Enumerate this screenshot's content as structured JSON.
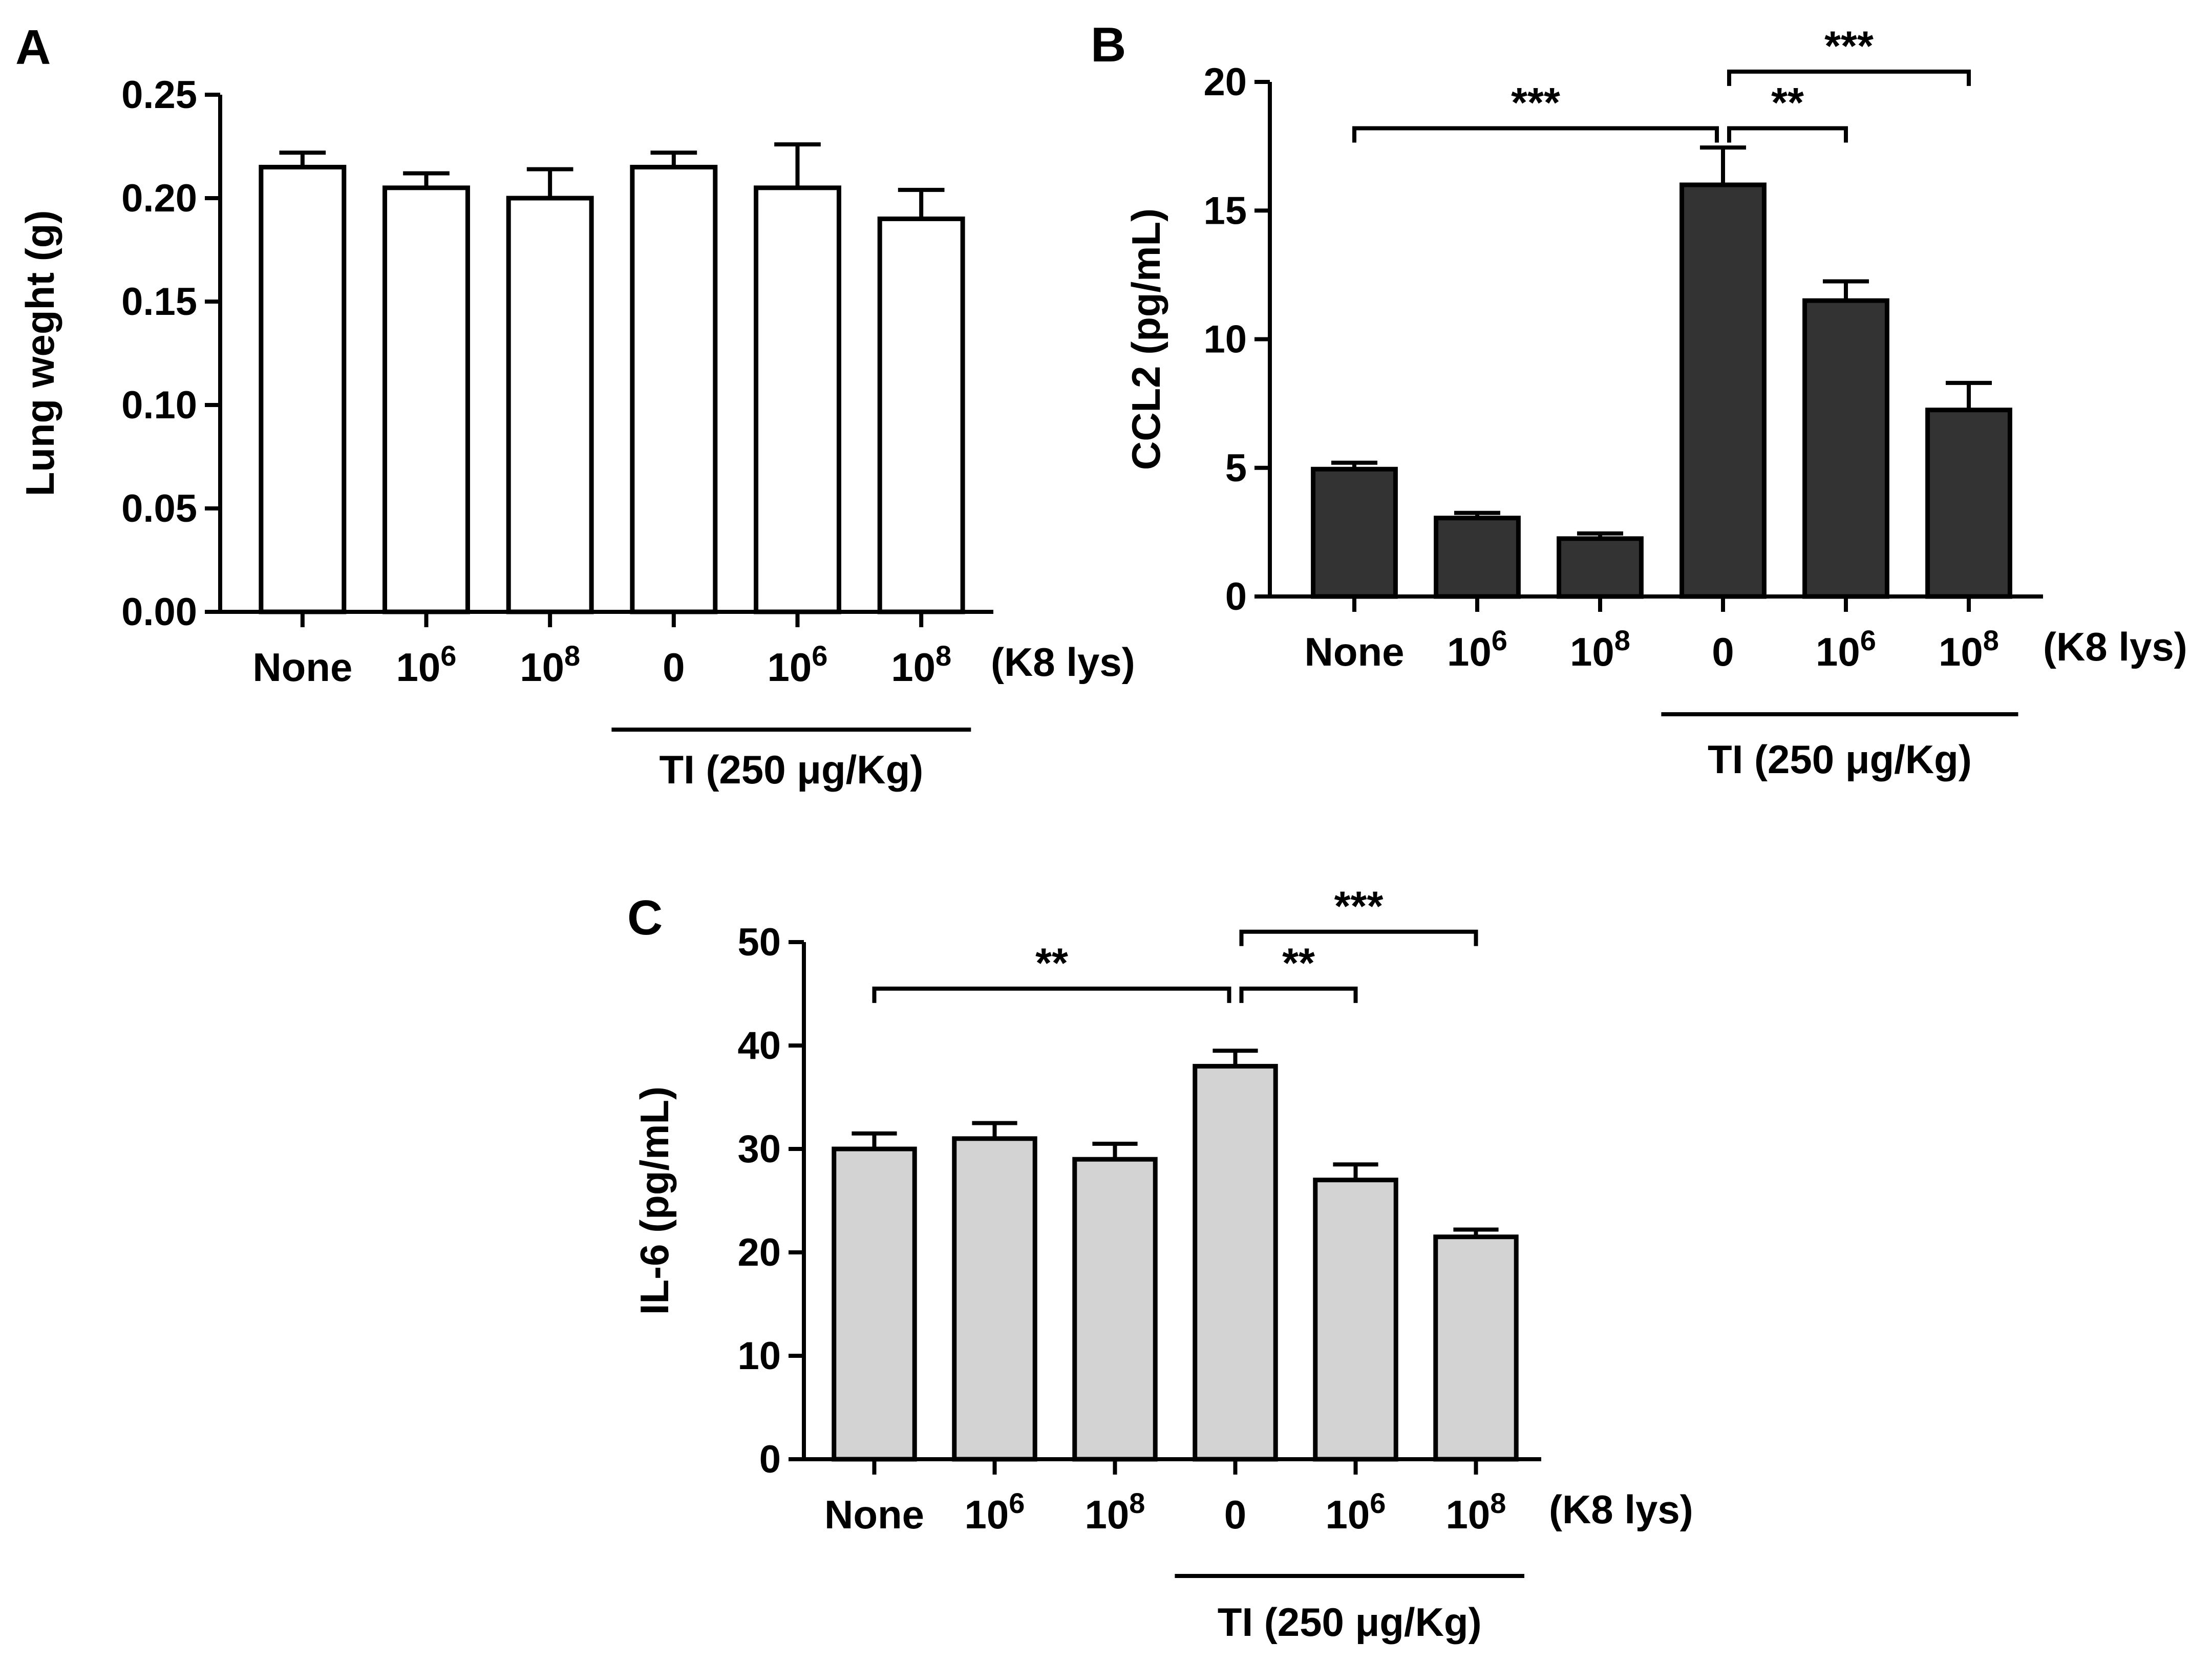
{
  "figure": {
    "background": "#ffffff",
    "axis_color": "#000000"
  },
  "chart_data": [
    {
      "panel": "A",
      "type": "bar",
      "ylabel": "Lung weght (g)",
      "ylim": [
        0,
        0.25
      ],
      "yticks": [
        "0.00",
        "0.05",
        "0.10",
        "0.15",
        "0.20",
        "0.25"
      ],
      "ytick_values": [
        0,
        0.05,
        0.1,
        0.15,
        0.2,
        0.25
      ],
      "categories": [
        {
          "base": "None",
          "exp": ""
        },
        {
          "base": "10",
          "exp": "6"
        },
        {
          "base": "10",
          "exp": "8"
        },
        {
          "base": "0",
          "exp": ""
        },
        {
          "base": "10",
          "exp": "6"
        },
        {
          "base": "10",
          "exp": "8"
        }
      ],
      "values": [
        0.215,
        0.205,
        0.2,
        0.215,
        0.205,
        0.19
      ],
      "errors": [
        0.007,
        0.007,
        0.014,
        0.007,
        0.021,
        0.014
      ],
      "bar_color": "#ffffff",
      "suffix_label": "(K8 lys)",
      "group_label": "TI (250 μg/Kg)",
      "group_span": [
        3,
        5
      ],
      "significance": []
    },
    {
      "panel": "B",
      "type": "bar",
      "ylabel": "CCL2 (pg/mL)",
      "ylim": [
        0,
        20
      ],
      "yticks": [
        "0",
        "5",
        "10",
        "15",
        "20"
      ],
      "ytick_values": [
        0,
        5,
        10,
        15,
        20
      ],
      "categories": [
        {
          "base": "None",
          "exp": ""
        },
        {
          "base": "10",
          "exp": "6"
        },
        {
          "base": "10",
          "exp": "8"
        },
        {
          "base": "0",
          "exp": ""
        },
        {
          "base": "10",
          "exp": "6"
        },
        {
          "base": "10",
          "exp": "8"
        }
      ],
      "values": [
        4.95,
        3.05,
        2.25,
        16.0,
        11.5,
        7.25
      ],
      "errors": [
        0.25,
        0.2,
        0.2,
        1.45,
        0.75,
        1.05
      ],
      "bar_color": "#333333",
      "suffix_label": "(K8 lys)",
      "group_label": "TI (250 μg/Kg)",
      "group_span": [
        3,
        5
      ],
      "significance": [
        {
          "from": 0,
          "to": 3,
          "label": "***",
          "y": 18.2
        },
        {
          "from": 3,
          "to": 4,
          "label": "**",
          "y": 18.2
        },
        {
          "from": 3,
          "to": 5,
          "label": "***",
          "y": 20.4
        }
      ]
    },
    {
      "panel": "C",
      "type": "bar",
      "ylabel": "IL-6 (pg/mL)",
      "ylim": [
        0,
        50
      ],
      "yticks": [
        "0",
        "10",
        "20",
        "30",
        "40",
        "50"
      ],
      "ytick_values": [
        0,
        10,
        20,
        30,
        40,
        50
      ],
      "categories": [
        {
          "base": "None",
          "exp": ""
        },
        {
          "base": "10",
          "exp": "6"
        },
        {
          "base": "10",
          "exp": "8"
        },
        {
          "base": "0",
          "exp": ""
        },
        {
          "base": "10",
          "exp": "6"
        },
        {
          "base": "10",
          "exp": "8"
        }
      ],
      "values": [
        30,
        31,
        29,
        38,
        27,
        21.5
      ],
      "errors": [
        1.5,
        1.5,
        1.5,
        1.5,
        1.5,
        0.7
      ],
      "bar_color": "#d3d3d3",
      "suffix_label": "(K8 lys)",
      "group_label": "TI (250 μg/Kg)",
      "group_span": [
        3,
        5
      ],
      "significance": [
        {
          "from": 0,
          "to": 3,
          "label": "**",
          "y": 45.5
        },
        {
          "from": 3,
          "to": 4,
          "label": "**",
          "y": 45.5
        },
        {
          "from": 3,
          "to": 5,
          "label": "***",
          "y": 51
        }
      ]
    }
  ]
}
